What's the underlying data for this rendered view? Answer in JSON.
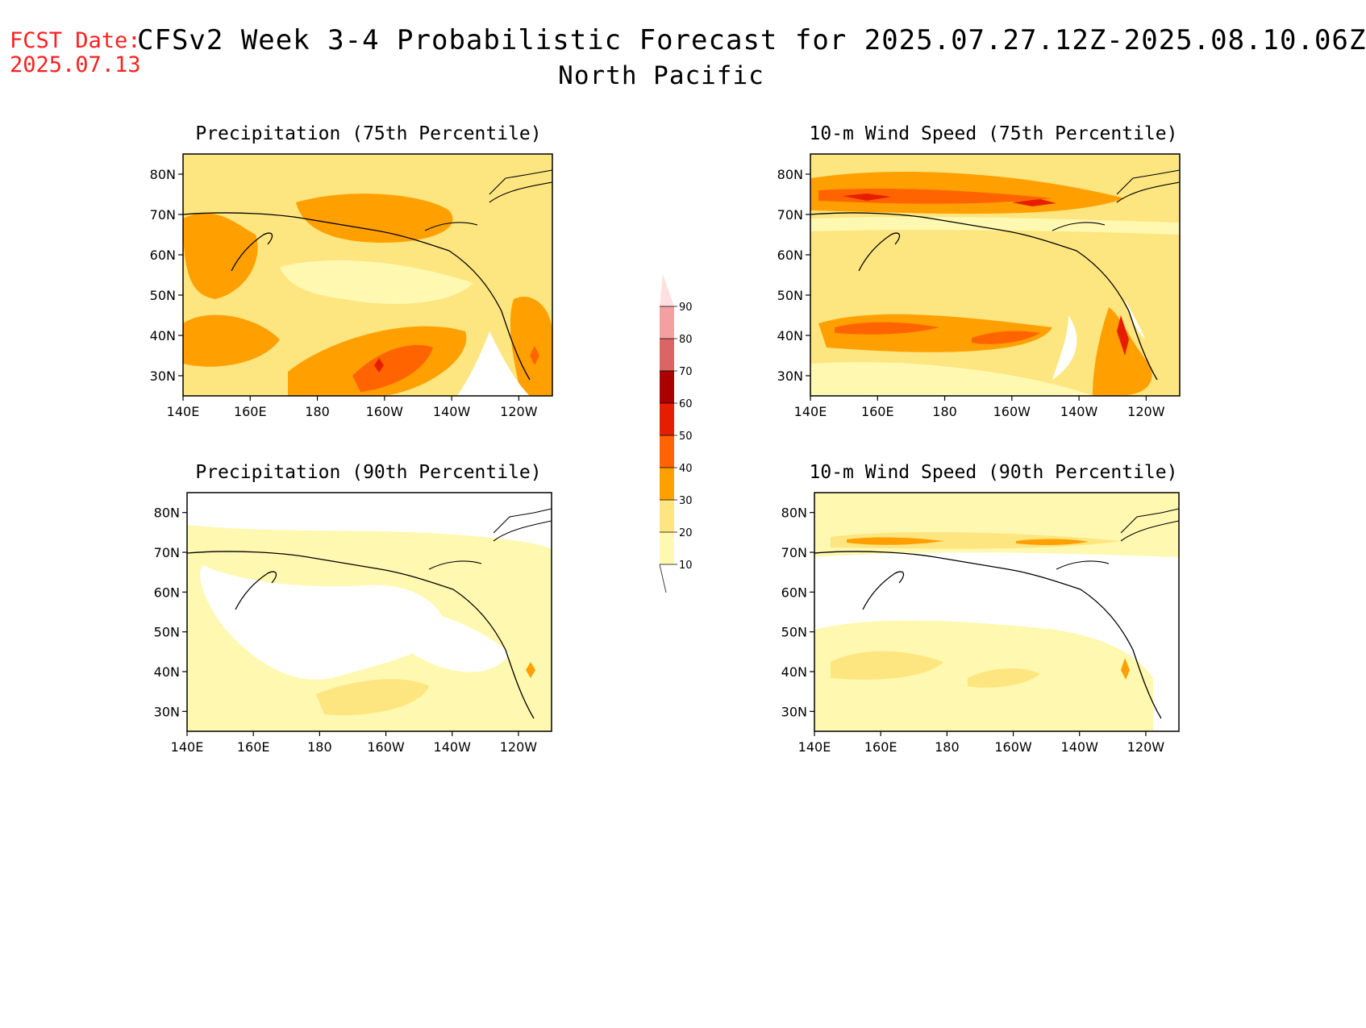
{
  "header": {
    "fcst_label": "FCST Date:",
    "fcst_date": "2025.07.13",
    "title": "CFSv2 Week 3-4 Probabilistic Forecast for 2025.07.27.12Z-2025.08.10.06Z",
    "region": "North Pacific"
  },
  "panels": [
    {
      "title": "Precipitation (75th Percentile)"
    },
    {
      "title": "10-m Wind Speed (75th Percentile)"
    },
    {
      "title": "Precipitation (90th Percentile)"
    },
    {
      "title": "10-m Wind Speed (90th Percentile)"
    }
  ],
  "axes": {
    "lat_labels": [
      "80N",
      "70N",
      "60N",
      "50N",
      "40N",
      "30N"
    ],
    "lon_labels": [
      "140E",
      "160E",
      "180",
      "160W",
      "140W",
      "120W"
    ],
    "lat_values": [
      80,
      70,
      60,
      50,
      40,
      30
    ],
    "lon_values": [
      140,
      160,
      180,
      200,
      220,
      240
    ],
    "lat_range": [
      25,
      85
    ],
    "lon_range": [
      140,
      250
    ]
  },
  "legend": {
    "levels": [
      "10",
      "20",
      "30",
      "40",
      "50",
      "60",
      "70",
      "80",
      "90"
    ],
    "colors": [
      "#fff8b0",
      "#fde580",
      "#ffa000",
      "#ff6400",
      "#e61e00",
      "#aa0000",
      "#dd6464",
      "#f5a0a0",
      "#ffe0e0"
    ]
  }
}
